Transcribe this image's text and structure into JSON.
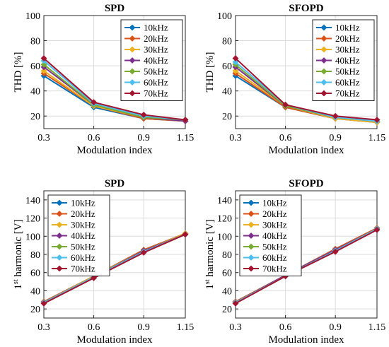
{
  "chart_data": [
    {
      "type": "line",
      "title": "SPD",
      "xlabel": "Modulation index",
      "ylabel": "THD [%]",
      "x": [
        0.3,
        0.6,
        0.9,
        1.15
      ],
      "x_tick_labels": [
        "0.3",
        "0.6",
        "0.9",
        "1.15"
      ],
      "ylim": [
        10,
        100
      ],
      "y_ticks": [
        20,
        40,
        60,
        80,
        100
      ],
      "grid": true,
      "legend_position": "top-right",
      "series": [
        {
          "name": "10kHz",
          "values": [
            52,
            27,
            18,
            16
          ]
        },
        {
          "name": "20kHz",
          "values": [
            54,
            28,
            18,
            16
          ]
        },
        {
          "name": "30kHz",
          "values": [
            56,
            28,
            19,
            16
          ]
        },
        {
          "name": "40kHz",
          "values": [
            59,
            29,
            19,
            16
          ]
        },
        {
          "name": "50kHz",
          "values": [
            61,
            29,
            19,
            17
          ]
        },
        {
          "name": "60kHz",
          "values": [
            64,
            30,
            20,
            17
          ]
        },
        {
          "name": "70kHz",
          "values": [
            66,
            31,
            21,
            17
          ]
        }
      ]
    },
    {
      "type": "line",
      "title": "SFOPD",
      "xlabel": "Modulation index",
      "ylabel": "THD [%]",
      "x": [
        0.3,
        0.6,
        0.9,
        1.15
      ],
      "x_tick_labels": [
        "0.3",
        "0.6",
        "0.9",
        "1.15"
      ],
      "ylim": [
        10,
        100
      ],
      "y_ticks": [
        20,
        40,
        60,
        80,
        100
      ],
      "grid": true,
      "legend_position": "top-right",
      "series": [
        {
          "name": "10kHz",
          "values": [
            52,
            27,
            18,
            15
          ]
        },
        {
          "name": "20kHz",
          "values": [
            54,
            27,
            18,
            15
          ]
        },
        {
          "name": "30kHz",
          "values": [
            56,
            28,
            18,
            15
          ]
        },
        {
          "name": "40kHz",
          "values": [
            59,
            28,
            19,
            16
          ]
        },
        {
          "name": "50kHz",
          "values": [
            61,
            28,
            19,
            16
          ]
        },
        {
          "name": "60kHz",
          "values": [
            63,
            29,
            19,
            16
          ]
        },
        {
          "name": "70kHz",
          "values": [
            66,
            29,
            20,
            17
          ]
        }
      ]
    },
    {
      "type": "line",
      "title": "SPD",
      "xlabel": "Modulation index",
      "ylabel": "1st harmonic [V]",
      "ylabel_base": "1",
      "ylabel_sup": "st",
      "ylabel_rest": " harmonic [V]",
      "x": [
        0.3,
        0.6,
        0.9,
        1.15
      ],
      "x_tick_labels": [
        "0.3",
        "0.6",
        "0.9",
        "1.15"
      ],
      "ylim": [
        10,
        150
      ],
      "y_ticks": [
        20,
        40,
        60,
        80,
        100,
        120,
        140
      ],
      "grid": true,
      "legend_position": "top-left",
      "series": [
        {
          "name": "10kHz",
          "values": [
            28,
            56,
            85,
            103
          ]
        },
        {
          "name": "20kHz",
          "values": [
            28,
            56,
            85,
            103
          ]
        },
        {
          "name": "30kHz",
          "values": [
            27,
            56,
            84,
            103
          ]
        },
        {
          "name": "40kHz",
          "values": [
            27,
            55,
            84,
            102
          ]
        },
        {
          "name": "50kHz",
          "values": [
            27,
            55,
            83,
            102
          ]
        },
        {
          "name": "60kHz",
          "values": [
            27,
            55,
            83,
            102
          ]
        },
        {
          "name": "70kHz",
          "values": [
            26,
            54,
            82,
            102
          ]
        }
      ]
    },
    {
      "type": "line",
      "title": "SFOPD",
      "xlabel": "Modulation index",
      "ylabel": "1st harmonic [V]",
      "ylabel_base": "1",
      "ylabel_sup": "st",
      "ylabel_rest": " harmonic [V]",
      "x": [
        0.3,
        0.6,
        0.9,
        1.15
      ],
      "x_tick_labels": [
        "0.3",
        "0.6",
        "0.9",
        "1.15"
      ],
      "ylim": [
        10,
        150
      ],
      "y_ticks": [
        20,
        40,
        60,
        80,
        100,
        120,
        140
      ],
      "grid": true,
      "legend_position": "top-left",
      "series": [
        {
          "name": "10kHz",
          "values": [
            28,
            57,
            86,
            109
          ]
        },
        {
          "name": "20kHz",
          "values": [
            28,
            57,
            86,
            109
          ]
        },
        {
          "name": "30kHz",
          "values": [
            27,
            57,
            85,
            108
          ]
        },
        {
          "name": "40kHz",
          "values": [
            27,
            57,
            85,
            108
          ]
        },
        {
          "name": "50kHz",
          "values": [
            27,
            56,
            84,
            108
          ]
        },
        {
          "name": "60kHz",
          "values": [
            27,
            56,
            84,
            108
          ]
        },
        {
          "name": "70kHz",
          "values": [
            26,
            56,
            83,
            107
          ]
        }
      ]
    }
  ],
  "colors": [
    "#0072BD",
    "#D95319",
    "#EDB120",
    "#7E2F8E",
    "#77AC30",
    "#4DBEEE",
    "#A2142F"
  ]
}
